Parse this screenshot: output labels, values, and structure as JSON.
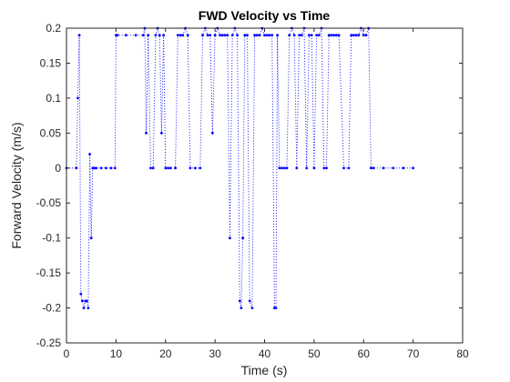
{
  "chart_data": {
    "type": "line",
    "title": "FWD Velocity vs Time",
    "xlabel": "Time (s)",
    "ylabel": "Forward Velocity (m/s)",
    "xlim": [
      0,
      80
    ],
    "ylim": [
      -0.25,
      0.2
    ],
    "xticks": [
      "0",
      "10",
      "20",
      "30",
      "40",
      "50",
      "60",
      "70",
      "80"
    ],
    "yticks": [
      "-0.25",
      "-0.2",
      "-0.15",
      "-0.1",
      "-0.05",
      "0",
      "0.05",
      "0.1",
      "0.15",
      "0.2"
    ],
    "grid": false,
    "legend": "none",
    "series": [
      {
        "color": "#0000ff",
        "style": "dotted line with point markers",
        "x": [
          0,
          2.0,
          2.3,
          2.6,
          2.9,
          3.2,
          3.5,
          3.8,
          4.1,
          4.4,
          4.7,
          5.0,
          5.3,
          5.6,
          6.0,
          7.0,
          8.0,
          9.0,
          9.8,
          10.0,
          10.3,
          12.0,
          14.0,
          15.5,
          15.8,
          16.1,
          16.5,
          17.0,
          17.5,
          18.0,
          18.4,
          18.8,
          19.2,
          19.6,
          20.0,
          20.5,
          21.0,
          22.0,
          22.5,
          23.0,
          23.5,
          24.0,
          24.5,
          25.0,
          26.0,
          27.0,
          27.5,
          28.0,
          28.5,
          29.0,
          29.5,
          30.0,
          30.5,
          31.0,
          31.5,
          32.0,
          32.5,
          33.0,
          33.5,
          34.0,
          34.5,
          35.0,
          35.3,
          35.6,
          36.0,
          36.5,
          37.0,
          37.5,
          38.0,
          38.5,
          39.0,
          39.5,
          40.0,
          40.5,
          41.0,
          41.5,
          42.0,
          42.3,
          42.6,
          43.0,
          43.5,
          44.0,
          44.5,
          45.0,
          45.5,
          46.0,
          46.5,
          47.0,
          47.5,
          48.0,
          48.5,
          49.0,
          49.5,
          50.0,
          50.5,
          51.0,
          51.5,
          52.0,
          52.5,
          53.0,
          53.5,
          54.0,
          54.5,
          55.0,
          56.0,
          57.0,
          57.5,
          58.0,
          58.5,
          59.0,
          59.5,
          60.0,
          60.5,
          61.0,
          61.5,
          62.0,
          64.0,
          66.0,
          68.0,
          70.0
        ],
        "y": [
          0,
          0,
          0.1,
          0.19,
          -0.18,
          -0.19,
          -0.2,
          -0.19,
          -0.19,
          -0.2,
          0.02,
          -0.1,
          0,
          0,
          0,
          0,
          0,
          0,
          0,
          0.19,
          0.19,
          0.19,
          0.19,
          0.19,
          0.2,
          0.05,
          0.19,
          0,
          0,
          0.19,
          0.2,
          0.19,
          0.05,
          0.19,
          0,
          0,
          0,
          0,
          0.19,
          0.19,
          0.19,
          0.2,
          0.19,
          0,
          0,
          0,
          0.19,
          0.2,
          0.19,
          0.19,
          0.05,
          0.19,
          0.2,
          0.19,
          0.19,
          0.19,
          0.19,
          -0.1,
          0.19,
          0.2,
          0.19,
          -0.19,
          -0.2,
          -0.1,
          0.19,
          0.19,
          -0.19,
          -0.2,
          0.19,
          0.19,
          0.19,
          0.2,
          0.19,
          0.19,
          0.19,
          0.19,
          -0.2,
          -0.2,
          0.19,
          0,
          0,
          0,
          0,
          0.19,
          0.2,
          0.19,
          0,
          0.19,
          0.19,
          0.2,
          0,
          0.19,
          0.19,
          0,
          0.19,
          0.19,
          0.2,
          0,
          0,
          0.19,
          0.19,
          0.19,
          0.19,
          0.19,
          0,
          0,
          0.19,
          0.19,
          0.19,
          0.19,
          0.2,
          0.19,
          0.19,
          0.2,
          0,
          0,
          0,
          0,
          0,
          0
        ]
      }
    ]
  }
}
